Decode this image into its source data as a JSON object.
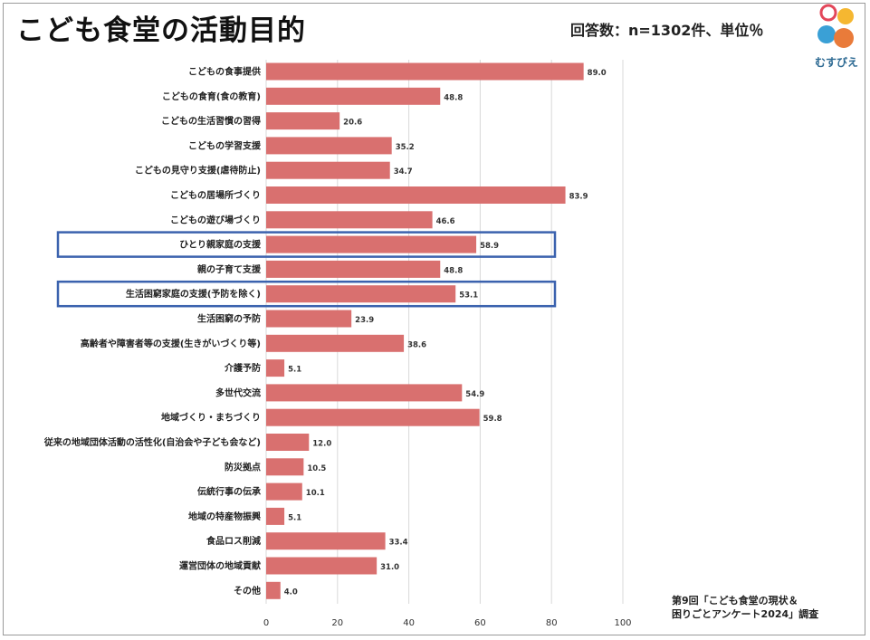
{
  "title": "こども食堂の活動目的",
  "note": "回答数：n=1302件、単位％",
  "logo": {
    "text": "むすびえ",
    "colors": [
      "#e3475a",
      "#f5b731",
      "#3aa0d6",
      "#e97b3a"
    ]
  },
  "source": {
    "line1": "第9回「こども食堂の現状＆",
    "line2": "困りごとアンケート2024」調査"
  },
  "colors": {
    "bar": "#d9706f",
    "highlight_box": "#3b62ae",
    "grid": "#d8d8d8"
  },
  "chart_data": {
    "type": "bar",
    "orientation": "horizontal",
    "categories": [
      "こどもの食事提供",
      "こどもの食育(食の教育)",
      "こどもの生活習慣の習得",
      "こどもの学習支援",
      "こどもの見守り支援(虐待防止)",
      "こどもの居場所づくり",
      "こどもの遊び場づくり",
      "ひとり親家庭の支援",
      "親の子育て支援",
      "生活困窮家庭の支援(予防を除く)",
      "生活困窮の予防",
      "高齢者や障害者等の支援(生きがいづくり等)",
      "介護予防",
      "多世代交流",
      "地域づくり・まちづくり",
      "従来の地域団体活動の活性化(自治会や子ども会など)",
      "防災拠点",
      "伝統行事の伝承",
      "地域の特産物振興",
      "食品ロス削減",
      "運営団体の地域貢献",
      "その他"
    ],
    "values": [
      89.0,
      48.8,
      20.6,
      35.2,
      34.7,
      83.9,
      46.6,
      58.9,
      48.8,
      53.1,
      23.9,
      38.6,
      5.1,
      54.9,
      59.8,
      12.0,
      10.5,
      10.1,
      5.1,
      33.4,
      31.0,
      4.0
    ],
    "value_labels": [
      "89.0",
      "48.8",
      "20.6",
      "35.2",
      "34.7",
      "83.9",
      "46.6",
      "58.9",
      "48.8",
      "53.1",
      "23.9",
      "38.6",
      "5.1",
      "54.9",
      "59.8",
      "12.0",
      "10.5",
      "10.1",
      "5.1",
      "33.4",
      "31.0",
      "4.0"
    ],
    "highlighted_categories": [
      "ひとり親家庭の支援",
      "生活困窮家庭の支援(予防を除く)"
    ],
    "xlim": [
      0,
      100
    ],
    "xticks": [
      "0",
      "20",
      "40",
      "60",
      "80",
      "100"
    ],
    "grid": true,
    "legend": false
  }
}
